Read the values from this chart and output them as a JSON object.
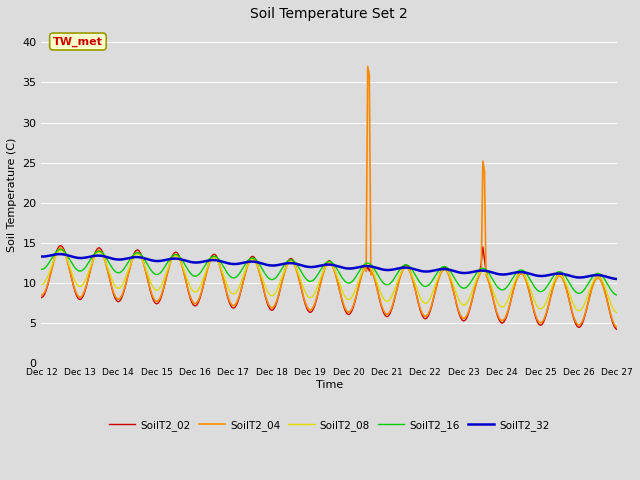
{
  "title": "Soil Temperature Set 2",
  "xlabel": "Time",
  "ylabel": "Soil Temperature (C)",
  "ylim": [
    0,
    42
  ],
  "yticks": [
    0,
    5,
    10,
    15,
    20,
    25,
    30,
    35,
    40
  ],
  "background_color": "#dcdcdc",
  "plot_bg_color": "#dcdcdc",
  "series_colors": {
    "SoilT2_02": "#cc0000",
    "SoilT2_04": "#ff8800",
    "SoilT2_08": "#dddd00",
    "SoilT2_16": "#00cc00",
    "SoilT2_32": "#0000cc"
  },
  "annotation_text": "TW_met",
  "annotation_color": "#cc0000",
  "annotation_bg": "#ffffcc",
  "annotation_border": "#999900",
  "date_start": "2000-12-12",
  "date_end": "2000-12-27"
}
